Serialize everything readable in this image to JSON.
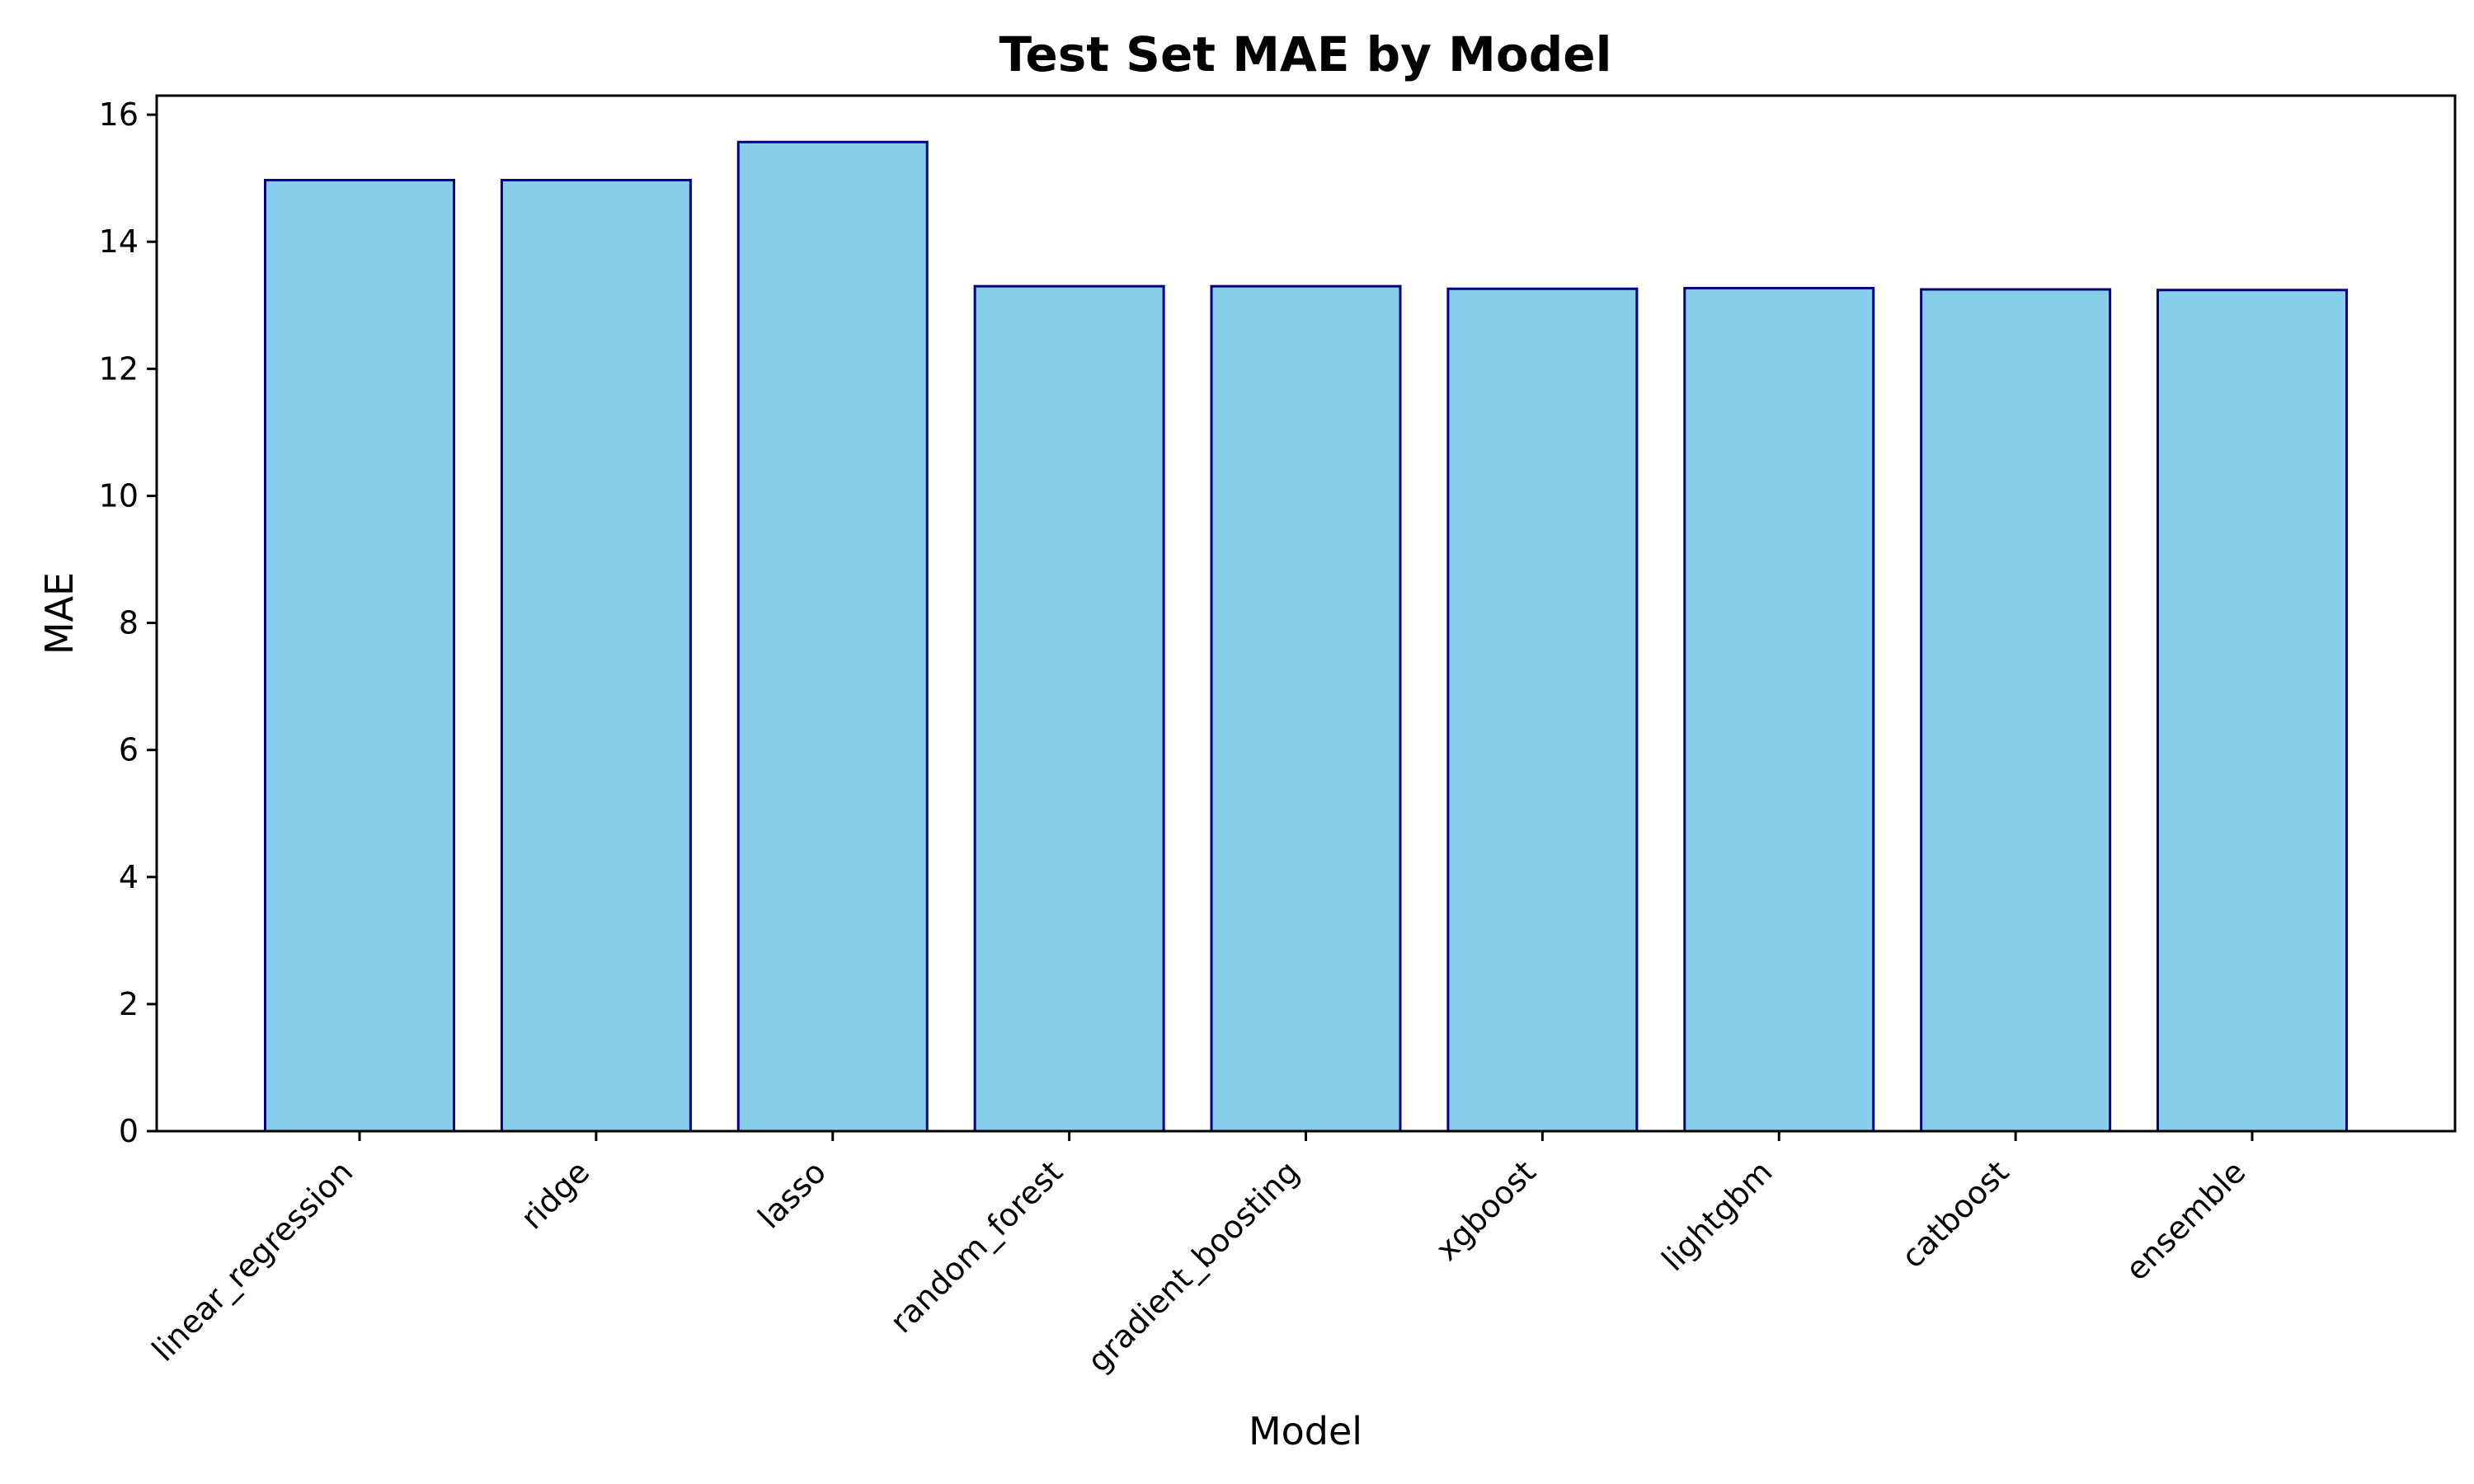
{
  "chart_data": {
    "type": "bar",
    "title": "Test Set MAE by Model",
    "xlabel": "Model",
    "ylabel": "MAE",
    "categories": [
      "linear_regression",
      "ridge",
      "lasso",
      "random_forest",
      "gradient_boosting",
      "xgboost",
      "lightgbm",
      "catboost",
      "ensemble"
    ],
    "values": [
      14.97,
      14.97,
      15.57,
      13.3,
      13.3,
      13.26,
      13.27,
      13.25,
      13.24
    ],
    "ylim": [
      0,
      16.3
    ],
    "yticks": [
      "0",
      "2",
      "4",
      "6",
      "8",
      "10",
      "12",
      "14",
      "16"
    ],
    "grid": false,
    "legend": "none",
    "colors": {
      "bar_fill": "#87CEEB",
      "bar_edge": "#000080",
      "axis": "#000000"
    }
  }
}
